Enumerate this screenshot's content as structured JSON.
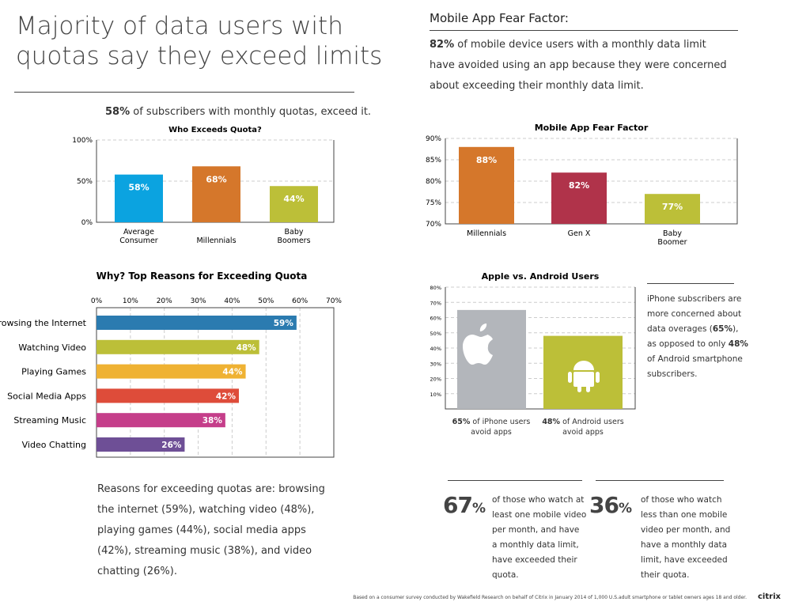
{
  "left": {
    "title_line1": "Majority of data users with",
    "title_line2": "quotas say they exceed limits",
    "subtitle_pct": "58%",
    "subtitle_rest": " of subscribers with monthly quotas, exceed it.",
    "reasons_text": "Reasons for exceeding quotas are: browsing the internet (59%), watching video (48%), playing games (44%), social media apps (42%), streaming music (38%), and video chatting (26%)."
  },
  "right": {
    "heading": "Mobile App Fear Factor:",
    "intro_pct": "82%",
    "intro_rest": " of mobile device users with a monthly data limit have avoided using an app because they were concerned about exceeding their monthly data limit.",
    "iphone_note_1": "iPhone subscribers are more concerned about data overages (",
    "iphone_note_pct1": "65%",
    "iphone_note_2": "), as opposed to only ",
    "iphone_note_pct2": "48%",
    "iphone_note_3": " of Android smartphone subscribers.",
    "stat1_value": "67",
    "stat1_unit": "%",
    "stat1_text": "of those who watch at least one mobile video per month, and have a monthly data limit, have exceeded their quota.",
    "stat2_value": "36",
    "stat2_unit": "%",
    "stat2_text": "of those who watch less than one mobile video per month, and have a monthly data limit, have exceeded their quota."
  },
  "footer": {
    "note": "Based on a consumer survey conducted by Wakefield Research on behalf of Citrix in January 2014 of 1,000 U.S.adult smartphone or tablet owners ages 18 and older.",
    "logo": "citrix"
  },
  "chart_data": [
    {
      "type": "bar",
      "title": "Who Exceeds Quota?",
      "categories": [
        "Average Consumer",
        "Millennials",
        "Baby Boomers"
      ],
      "values": [
        58,
        68,
        44
      ],
      "labels": [
        "58%",
        "68%",
        "44%"
      ],
      "colors": [
        "#0ba3e0",
        "#d5772b",
        "#bcbf38"
      ],
      "ylim": [
        0,
        100
      ],
      "yticks": [
        "0%",
        "50%",
        "100%"
      ],
      "grid": true
    },
    {
      "type": "bar",
      "title": "Mobile App Fear Factor",
      "categories": [
        "Millennials",
        "Gen X",
        "Baby Boomer"
      ],
      "values": [
        88,
        82,
        77
      ],
      "labels": [
        "88%",
        "82%",
        "77%"
      ],
      "colors": [
        "#d5772b",
        "#b0334a",
        "#bcbf38"
      ],
      "ylim": [
        70,
        90
      ],
      "yticks": [
        "70%",
        "75%",
        "80%",
        "85%",
        "90%"
      ],
      "grid": true
    },
    {
      "type": "bar",
      "orientation": "horizontal",
      "title": "Why? Top Reasons for Exceeding Quota",
      "categories": [
        "Browsing the Internet",
        "Watching Video",
        "Playing Games",
        "Social Media Apps",
        "Streaming Music",
        "Video Chatting"
      ],
      "values": [
        59,
        48,
        44,
        42,
        38,
        26
      ],
      "labels": [
        "59%",
        "48%",
        "44%",
        "42%",
        "38%",
        "26%"
      ],
      "colors": [
        "#2b7bb0",
        "#bcbf38",
        "#efb233",
        "#de4c3a",
        "#c53e8a",
        "#6e4f96"
      ],
      "xlim": [
        0,
        70
      ],
      "xticks": [
        "0%",
        "10%",
        "20%",
        "30%",
        "40%",
        "50%",
        "60%",
        "70%"
      ],
      "grid": true
    },
    {
      "type": "bar",
      "title": "Apple vs. Android Users",
      "categories": [
        "65% of iPhone users avoid apps",
        "48% of Android users avoid apps"
      ],
      "category_bold": [
        "65%",
        "48%"
      ],
      "category_rest": [
        " of iPhone users avoid apps",
        " of Android users avoid apps"
      ],
      "values": [
        65,
        48
      ],
      "icons": [
        "apple-icon",
        "android-icon"
      ],
      "colors": [
        "#b3b6bb",
        "#bcbf38"
      ],
      "ylim": [
        0,
        80
      ],
      "yticks": [
        "10%",
        "20%",
        "30%",
        "40%",
        "50%",
        "60%",
        "70%",
        "80%"
      ],
      "grid": true
    }
  ]
}
